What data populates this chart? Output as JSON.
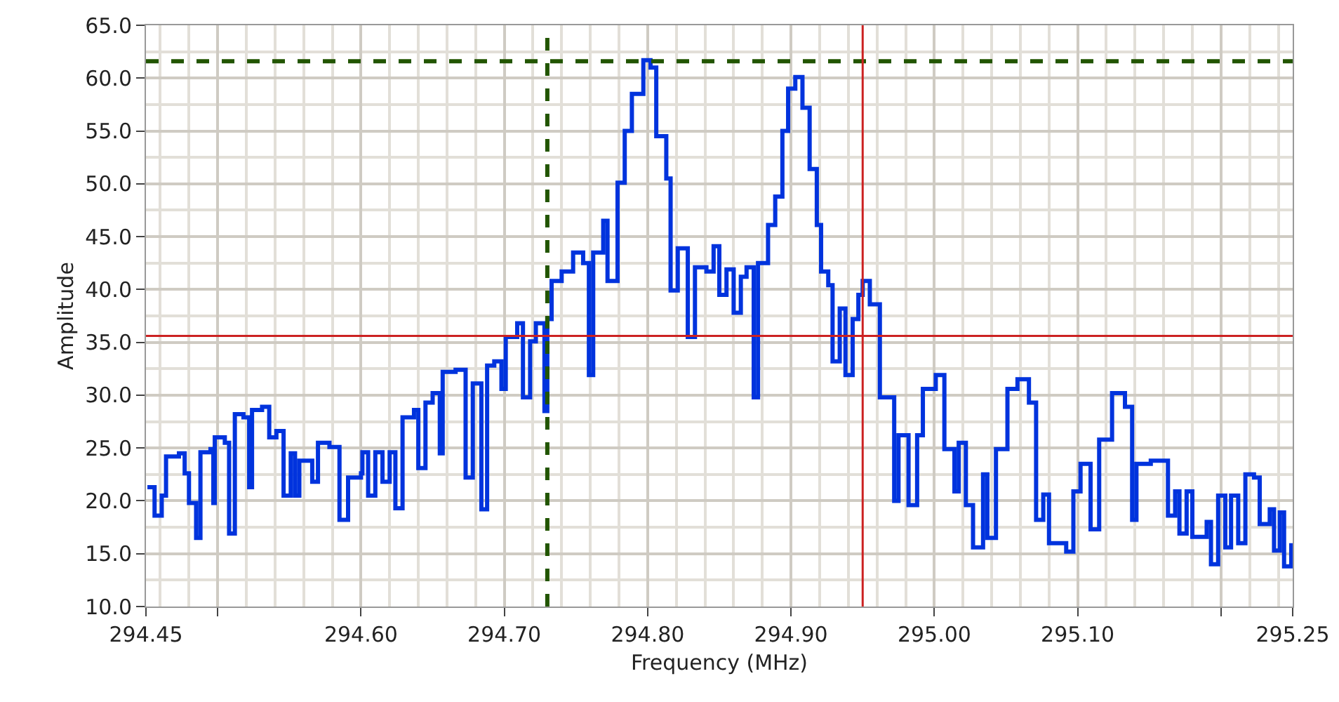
{
  "chart_data": {
    "type": "step",
    "xlabel": "Frequency (MHz)",
    "ylabel": "Amplitude",
    "x": [
      294.451,
      294.456,
      294.461,
      294.464,
      294.473,
      294.477,
      294.48,
      294.485,
      294.488,
      294.495,
      294.497,
      294.498,
      294.505,
      294.508,
      294.512,
      294.518,
      294.522,
      294.524,
      294.531,
      294.536,
      294.541,
      294.546,
      294.551,
      294.554,
      294.557,
      294.566,
      294.57,
      294.578,
      294.585,
      294.591,
      294.6,
      294.601,
      294.605,
      294.61,
      294.615,
      294.62,
      294.624,
      294.629,
      294.637,
      294.64,
      294.645,
      294.65,
      294.655,
      294.657,
      294.666,
      294.673,
      294.678,
      294.684,
      294.688,
      294.693,
      294.698,
      294.701,
      294.709,
      294.713,
      294.718,
      294.722,
      294.728,
      294.73,
      294.733,
      294.74,
      294.748,
      294.755,
      294.759,
      294.762,
      294.769,
      294.772,
      294.779,
      294.784,
      294.789,
      294.797,
      294.802,
      294.806,
      294.813,
      294.816,
      294.821,
      294.828,
      294.833,
      294.841,
      294.846,
      294.85,
      294.855,
      294.86,
      294.865,
      294.869,
      294.874,
      294.877,
      294.884,
      294.889,
      294.894,
      294.898,
      294.903,
      294.908,
      294.913,
      294.918,
      294.921,
      294.926,
      294.929,
      294.934,
      294.938,
      294.943,
      294.947,
      294.95,
      294.955,
      294.962,
      294.968,
      294.972,
      294.975,
      294.982,
      294.988,
      294.992,
      295.001,
      295.007,
      295.014,
      295.017,
      295.022,
      295.027,
      295.034,
      295.037,
      295.043,
      295.051,
      295.058,
      295.066,
      295.071,
      295.076,
      295.08,
      295.092,
      295.097,
      295.102,
      295.109,
      295.115,
      295.124,
      295.133,
      295.138,
      295.141,
      295.151,
      295.163,
      295.168,
      295.171,
      295.176,
      295.18,
      295.19,
      295.193,
      295.198,
      295.203,
      295.207,
      295.212,
      295.217,
      295.223,
      295.227,
      295.234,
      295.237,
      295.241,
      295.244,
      295.249
    ],
    "series": [
      {
        "color": "#0033dd",
        "values": [
          21.3,
          18.6,
          20.5,
          24.2,
          24.5,
          22.6,
          19.8,
          16.5,
          24.6,
          24.9,
          19.8,
          26.0,
          25.5,
          16.9,
          28.2,
          27.9,
          21.3,
          28.6,
          28.9,
          26.0,
          26.6,
          20.5,
          24.5,
          20.5,
          23.8,
          21.8,
          25.5,
          25.1,
          18.2,
          22.2,
          22.6,
          24.6,
          20.5,
          24.6,
          21.8,
          24.6,
          19.3,
          27.9,
          28.6,
          23.1,
          29.3,
          30.2,
          24.5,
          32.2,
          32.4,
          22.2,
          31.1,
          19.2,
          32.8,
          33.2,
          30.6,
          35.5,
          36.8,
          29.8,
          35.1,
          36.8,
          28.5,
          37.2,
          40.8,
          41.7,
          43.5,
          42.5,
          31.9,
          43.5,
          46.5,
          40.8,
          50.1,
          55.0,
          58.5,
          61.7,
          61.0,
          54.5,
          50.5,
          39.9,
          43.9,
          35.5,
          42.1,
          41.7,
          44.1,
          39.5,
          41.9,
          37.8,
          41.2,
          42.1,
          29.8,
          42.5,
          46.1,
          48.8,
          55.0,
          59.0,
          60.1,
          57.2,
          51.4,
          46.1,
          41.7,
          40.4,
          33.2,
          38.2,
          31.9,
          37.2,
          39.5,
          40.8,
          38.6,
          29.8,
          29.8,
          20.0,
          26.2,
          19.6,
          26.2,
          30.6,
          31.9,
          24.9,
          20.9,
          25.5,
          19.6,
          15.6,
          22.5,
          16.5,
          24.9,
          30.6,
          31.5,
          29.3,
          18.2,
          20.6,
          16.0,
          15.2,
          20.9,
          23.5,
          17.3,
          25.8,
          30.2,
          28.9,
          18.2,
          23.5,
          23.8,
          18.6,
          20.9,
          16.9,
          20.9,
          16.6,
          18.0,
          14.0,
          20.5,
          15.6,
          20.5,
          16.0,
          22.5,
          22.2,
          17.8,
          19.2,
          15.3,
          18.9,
          13.8,
          16.0
        ]
      }
    ],
    "xlim": [
      294.45,
      295.25
    ],
    "xticks": [
      294.45,
      {
        "value": 294.5,
        "label": null
      },
      {
        "value": 294.6,
        "label": "294.60"
      },
      {
        "value": 294.7,
        "label": "294.70"
      },
      {
        "value": 294.8,
        "label": "294.80"
      },
      {
        "value": 294.9,
        "label": "294.90"
      },
      {
        "value": 295.0,
        "label": "295.00"
      },
      {
        "value": 295.1,
        "label": "295.10"
      },
      {
        "value": 295.2,
        "label": null
      },
      295.25
    ],
    "ylim": [
      10,
      65
    ],
    "yticks": [
      {
        "value": 10,
        "label": "10.0"
      },
      {
        "value": 15,
        "label": "15.0"
      },
      {
        "value": 20,
        "label": "20.0"
      },
      {
        "value": 25,
        "label": "25.0"
      },
      {
        "value": 30,
        "label": "30.0"
      },
      {
        "value": 35,
        "label": "35.0"
      },
      {
        "value": 40,
        "label": "40.0"
      },
      {
        "value": 45,
        "label": "45.0"
      },
      {
        "value": 50,
        "label": "50.0"
      },
      {
        "value": 55,
        "label": "55.0"
      },
      {
        "value": 60,
        "label": "60.0"
      },
      {
        "value": 65,
        "label": "65.0"
      }
    ],
    "grid": true,
    "ref_lines": [
      {
        "axis": "x",
        "value": 294.73,
        "color": "#225500",
        "line_style": "dashed"
      },
      {
        "axis": "y",
        "value": 61.6,
        "color": "#225500",
        "line_style": "dashed"
      },
      {
        "axis": "x",
        "value": 294.95,
        "color": "#cc2222",
        "line_style": "solid"
      },
      {
        "axis": "y",
        "value": 35.6,
        "color": "#cc2222",
        "line_style": "solid"
      }
    ]
  }
}
